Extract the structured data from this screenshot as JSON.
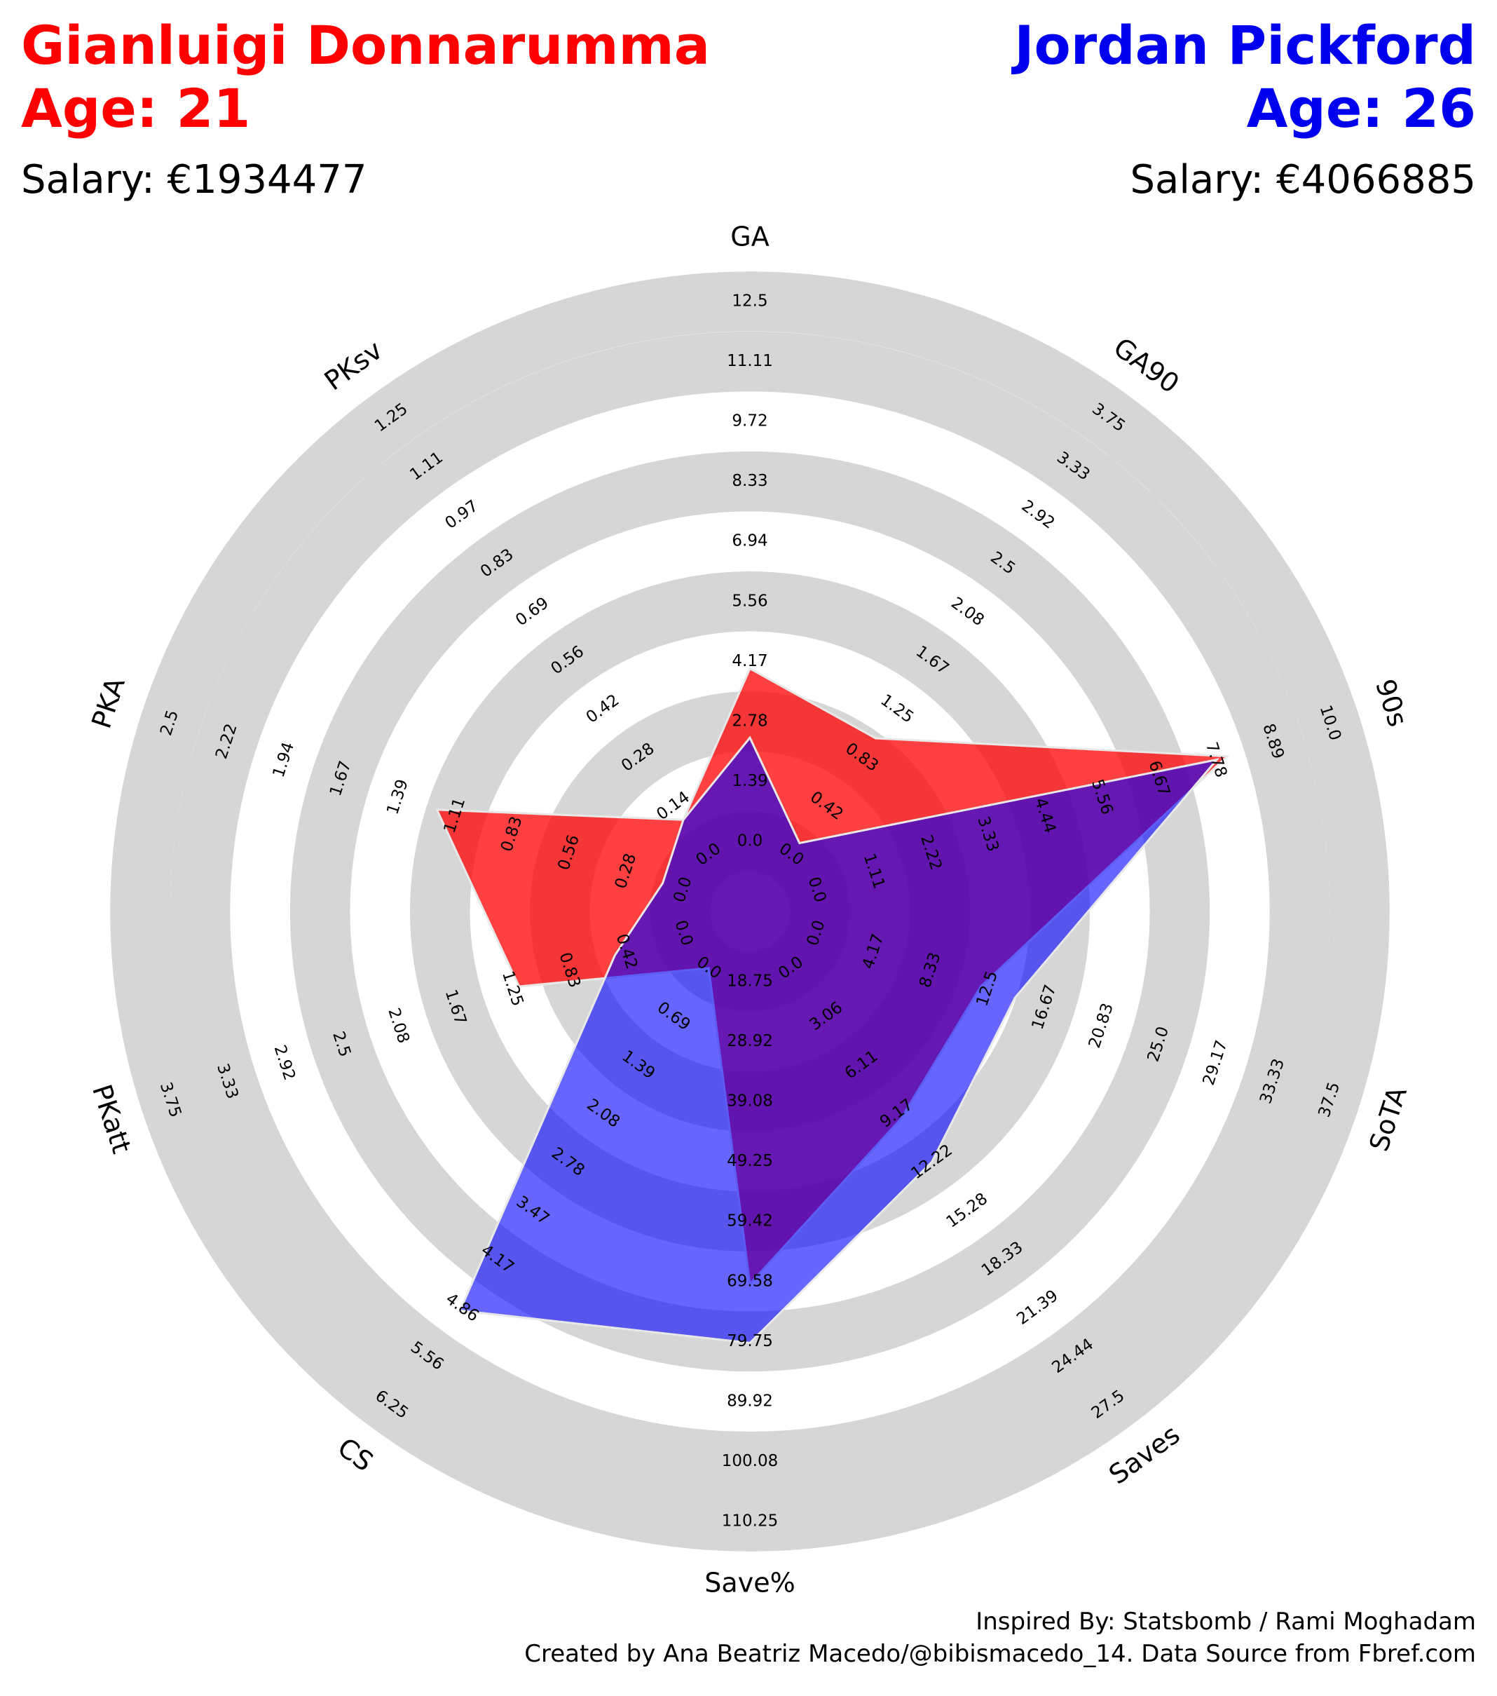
{
  "header": {
    "left": {
      "name": "Gianluigi Donnarumma",
      "age": "Age: 21",
      "salary": "Salary: €1934477",
      "color": "#ff0000"
    },
    "right": {
      "name": "Jordan Pickford",
      "age": "Age: 26",
      "salary": "Salary: €4066885",
      "color": "#0000ee"
    }
  },
  "footer": {
    "line1": "Inspired By: Statsbomb / Rami Moghadam",
    "line2": "Created by Ana Beatriz Macedo/@bibismacedo_14. Data Source from Fbref.com"
  },
  "chart_data": {
    "type": "radar",
    "axes": [
      {
        "label": "GA",
        "min": 0,
        "max": 12.5,
        "ticks": [
          "0.0",
          "1.39",
          "2.78",
          "4.17",
          "5.56",
          "6.94",
          "8.33",
          "9.72",
          "11.11",
          "12.5"
        ]
      },
      {
        "label": "GA90",
        "min": 0,
        "max": 3.75,
        "ticks": [
          "0.0",
          "0.42",
          "0.83",
          "1.25",
          "1.67",
          "2.08",
          "2.5",
          "2.92",
          "3.33",
          "3.75"
        ]
      },
      {
        "label": "90s",
        "min": 0,
        "max": 10.0,
        "ticks": [
          "0.0",
          "1.11",
          "2.22",
          "3.33",
          "4.44",
          "5.56",
          "6.67",
          "7.78",
          "8.89",
          "10.0"
        ]
      },
      {
        "label": "SoTA",
        "min": 0,
        "max": 37.5,
        "ticks": [
          "0.0",
          "4.17",
          "8.33",
          "12.5",
          "16.67",
          "20.83",
          "25.0",
          "29.17",
          "33.33",
          "37.5"
        ]
      },
      {
        "label": "Saves",
        "min": 0,
        "max": 27.5,
        "ticks": [
          "0.0",
          "3.06",
          "6.11",
          "9.17",
          "12.22",
          "15.28",
          "18.33",
          "21.39",
          "24.44",
          "27.5"
        ]
      },
      {
        "label": "Save%",
        "min": 18.75,
        "max": 110.25,
        "ticks": [
          "18.75",
          "28.92",
          "39.08",
          "49.25",
          "59.42",
          "69.58",
          "79.75",
          "89.92",
          "100.08",
          "110.25"
        ]
      },
      {
        "label": "CS",
        "min": 0,
        "max": 6.25,
        "ticks": [
          "0.0",
          "0.69",
          "1.39",
          "2.08",
          "2.78",
          "3.47",
          "4.17",
          "4.86",
          "5.56",
          "6.25"
        ]
      },
      {
        "label": "PKatt",
        "min": 0,
        "max": 3.75,
        "ticks": [
          "0.0",
          "0.42",
          "0.83",
          "1.25",
          "1.67",
          "2.08",
          "2.5",
          "2.92",
          "3.33",
          "3.75"
        ]
      },
      {
        "label": "PKA",
        "min": 0,
        "max": 2.5,
        "ticks": [
          "0.0",
          "0.28",
          "0.56",
          "0.83",
          "1.11",
          "1.39",
          "1.67",
          "1.94",
          "2.22",
          "2.5"
        ]
      },
      {
        "label": "PKsv",
        "min": 0,
        "max": 1.25,
        "ticks": [
          "0.0",
          "0.14",
          "0.28",
          "0.42",
          "0.56",
          "0.69",
          "0.83",
          "0.97",
          "1.11",
          "1.25"
        ]
      }
    ],
    "series": [
      {
        "name": "Gianluigi Donnarumma",
        "color": "#ff0000",
        "values": [
          4,
          1.0,
          8,
          12,
          9.5,
          70,
          0,
          1.2,
          1.2,
          0.1
        ]
      },
      {
        "name": "Jordan Pickford",
        "color": "#0000ff",
        "values": [
          2.4,
          0.1,
          7.8,
          14.5,
          12.2,
          80,
          4.9,
          0.5,
          0.1,
          0.1
        ]
      }
    ],
    "grid": "concentric rings"
  }
}
